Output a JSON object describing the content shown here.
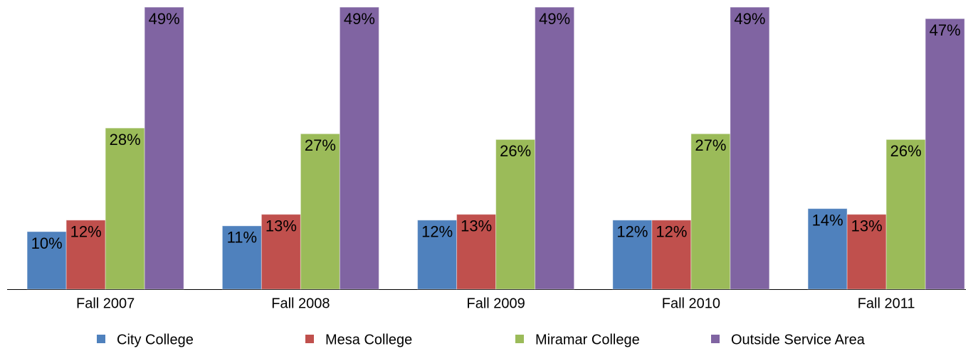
{
  "chart_data": {
    "type": "bar",
    "categories": [
      "Fall 2007",
      "Fall 2008",
      "Fall 2009",
      "Fall 2010",
      "Fall 2011"
    ],
    "series": [
      {
        "name": "City College",
        "color": "#4f81bd",
        "values": [
          10,
          11,
          12,
          12,
          14
        ],
        "value_labels": [
          "10%",
          "11%",
          "12%",
          "12%",
          "14%"
        ]
      },
      {
        "name": "Mesa College",
        "color": "#c0504d",
        "values": [
          12,
          13,
          13,
          12,
          13
        ],
        "value_labels": [
          "12%",
          "13%",
          "13%",
          "12%",
          "13%"
        ]
      },
      {
        "name": "Miramar College",
        "color": "#9bbb59",
        "values": [
          28,
          27,
          26,
          27,
          26
        ],
        "value_labels": [
          "28%",
          "27%",
          "26%",
          "27%",
          "26%"
        ]
      },
      {
        "name": "Outside Service Area",
        "color": "#8064a2",
        "values": [
          49,
          49,
          49,
          49,
          47
        ],
        "value_labels": [
          "49%",
          "49%",
          "49%",
          "49%",
          "47%"
        ]
      }
    ],
    "ylim": [
      0,
      50
    ],
    "legend": "bottom"
  }
}
